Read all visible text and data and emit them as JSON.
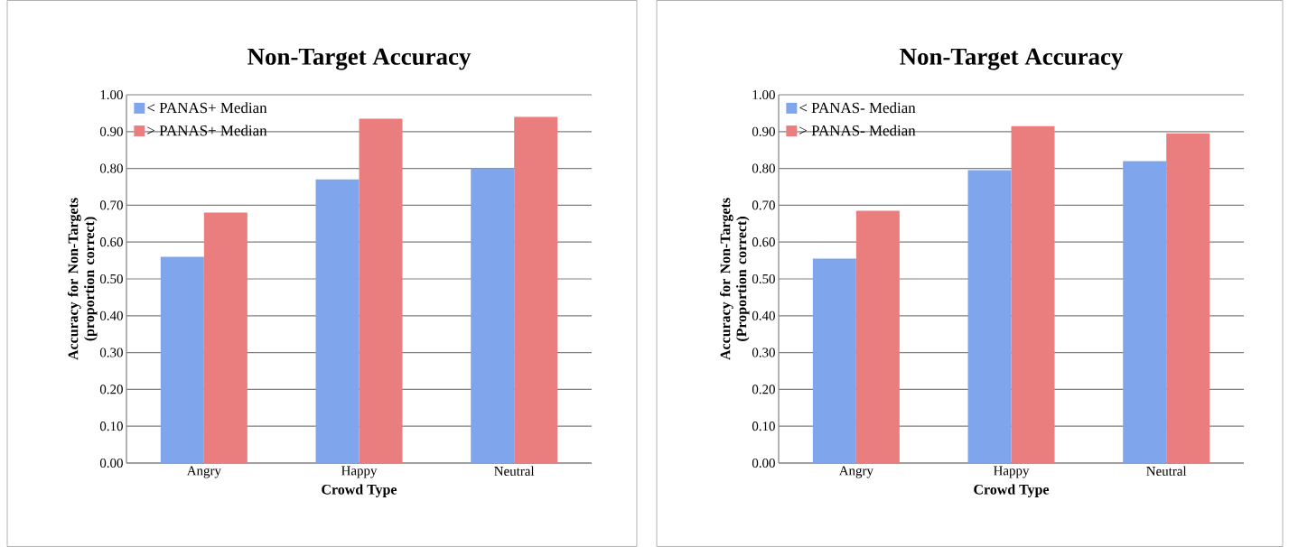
{
  "chart_data": [
    {
      "type": "bar",
      "title": "Non-Target Accuracy",
      "xlabel": "Crowd Type",
      "ylabel": "Accuracy for Non-Targets (proportion correct)",
      "categories": [
        "Angry",
        "Happy",
        "Neutral"
      ],
      "series": [
        {
          "name": "< PANAS+ Median",
          "color": "#7fa6ec",
          "values": [
            0.56,
            0.77,
            0.8
          ]
        },
        {
          "name": "> PANAS+ Median",
          "color": "#ea7e7e",
          "values": [
            0.68,
            0.935,
            0.94
          ]
        }
      ],
      "ylim": [
        0,
        1
      ],
      "yticks": [
        {
          "value": 0,
          "label": "0.00"
        },
        {
          "value": 0.1,
          "label": "0.10"
        },
        {
          "value": 0.2,
          "label": "0.20"
        },
        {
          "value": 0.3,
          "label": "0.30"
        },
        {
          "value": 0.4,
          "label": "0.40"
        },
        {
          "value": 0.5,
          "label": "0.50"
        },
        {
          "value": 0.6,
          "label": "0.60"
        },
        {
          "value": 0.7,
          "label": "0.70"
        },
        {
          "value": 0.8,
          "label": "0.80"
        },
        {
          "value": 0.9,
          "label": "0.90"
        },
        {
          "value": 1,
          "label": "1.00"
        }
      ],
      "grid": "y",
      "legend": "top left"
    },
    {
      "type": "bar",
      "title": "Non-Target Accuracy",
      "xlabel": "Crowd Type",
      "ylabel": "Accuracy for Non-Targets (Proportion correct)",
      "categories": [
        "Angry",
        "Happy",
        "Neutral"
      ],
      "series": [
        {
          "name": "< PANAS- Median",
          "color": "#7fa6ec",
          "values": [
            0.555,
            0.795,
            0.82
          ]
        },
        {
          "name": "> PANAS- Median",
          "color": "#ea7e7e",
          "values": [
            0.685,
            0.915,
            0.895
          ]
        }
      ],
      "ylim": [
        0,
        1
      ],
      "yticks": [
        {
          "value": 0,
          "label": "0.00"
        },
        {
          "value": 0.1,
          "label": "0.10"
        },
        {
          "value": 0.2,
          "label": "0.20"
        },
        {
          "value": 0.3,
          "label": "0.30"
        },
        {
          "value": 0.4,
          "label": "0.40"
        },
        {
          "value": 0.5,
          "label": "0.50"
        },
        {
          "value": 0.6,
          "label": "0.60"
        },
        {
          "value": 0.7,
          "label": "0.70"
        },
        {
          "value": 0.8,
          "label": "0.80"
        },
        {
          "value": 0.9,
          "label": "0.90"
        },
        {
          "value": 1,
          "label": "1.00"
        }
      ],
      "grid": "y",
      "legend": "top left"
    }
  ]
}
